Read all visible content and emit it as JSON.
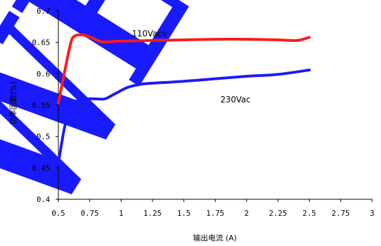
{
  "chart_data": {
    "type": "line",
    "xlabel": "输出电流 (A)",
    "ylabel": "功率因数(%)",
    "xlim": [
      0.5,
      3
    ],
    "ylim": [
      0.4,
      0.7
    ],
    "x_ticks": [
      "0.5",
      "0.75",
      "1",
      "1.25",
      "1.5",
      "1.75",
      "2",
      "2.25",
      "2.5",
      "2.75",
      "3"
    ],
    "y_ticks": [
      "0.4",
      "0.45",
      "0.5",
      "0.55",
      "0.6",
      "0.65",
      "0.7"
    ],
    "grid": false,
    "series": [
      {
        "name": "110Vacv",
        "color": "#ff1a1a",
        "x": [
          0.5,
          0.55,
          0.6,
          0.63,
          0.67,
          0.72,
          0.78,
          0.85,
          1.0,
          1.25,
          1.5,
          1.75,
          2.0,
          2.25,
          2.4,
          2.5
        ],
        "y": [
          0.553,
          0.603,
          0.65,
          0.66,
          0.662,
          0.661,
          0.656,
          0.651,
          0.652,
          0.653,
          0.654,
          0.655,
          0.655,
          0.654,
          0.653,
          0.658
        ]
      },
      {
        "name": "230Vac",
        "color": "#1a1aff",
        "x": [
          0.5,
          0.55,
          0.6,
          0.65,
          0.72,
          0.8,
          0.87,
          0.95,
          1.05,
          1.15,
          1.25,
          1.5,
          1.75,
          2.0,
          2.25,
          2.5
        ],
        "y": [
          0.457,
          0.515,
          0.55,
          0.557,
          0.56,
          0.56,
          0.56,
          0.568,
          0.578,
          0.583,
          0.585,
          0.588,
          0.592,
          0.596,
          0.599,
          0.606
        ]
      }
    ],
    "annotations": [
      {
        "text": "110Vacv",
        "series": 0
      },
      {
        "text": "230Vac",
        "series": 1
      }
    ]
  },
  "watermark": {
    "text": "WER",
    "color": "#1a1aff"
  }
}
